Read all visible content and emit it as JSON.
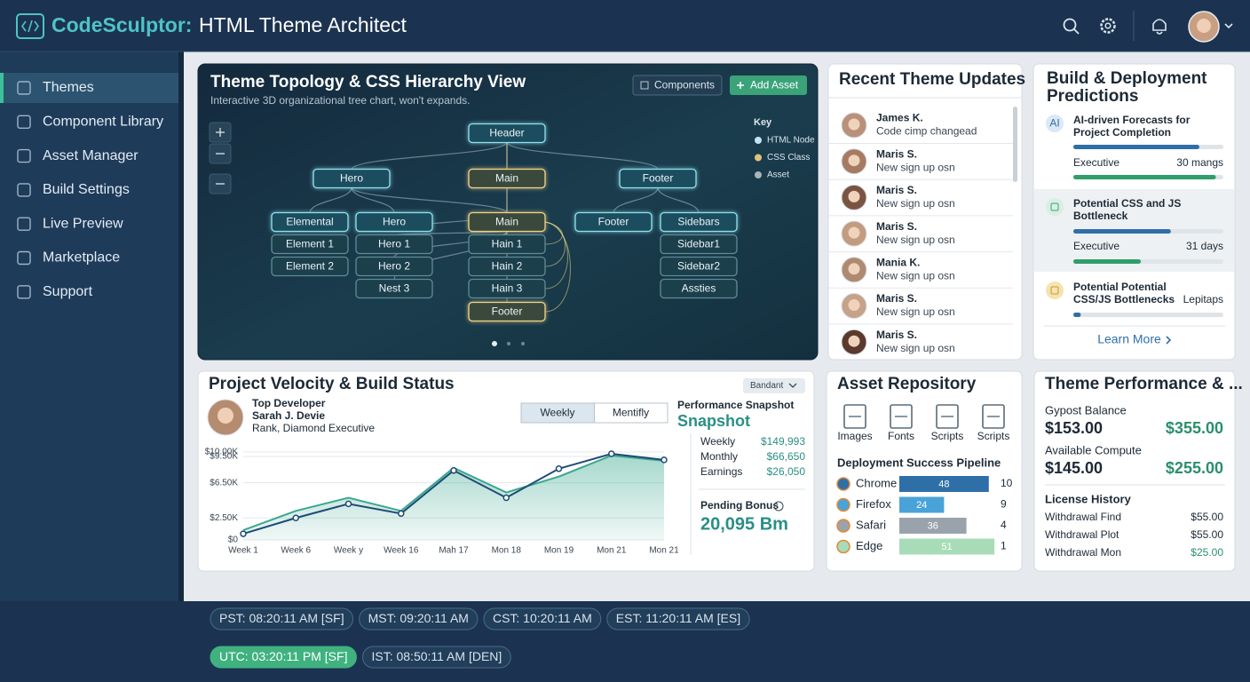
{
  "app": {
    "brand": "CodeSculptor:",
    "title": "HTML Theme Architect"
  },
  "nav": {
    "items": [
      "Themes",
      "Component Library",
      "Asset Manager",
      "Build Settings",
      "Live Preview",
      "Marketplace",
      "Support"
    ],
    "active": 0
  },
  "topology": {
    "title": "Theme Topology & CSS Hierarchy View",
    "subtitle": "Interactive 3D organizational tree chart, won't expands.",
    "buttons": [
      "Components",
      "Add Asset"
    ],
    "key": {
      "title": "Key",
      "items": [
        {
          "label": "HTML Node",
          "color": "#bfe6f5"
        },
        {
          "label": "CSS Class",
          "color": "#e2c27a"
        },
        {
          "label": "Asset",
          "color": "#a9b3bb"
        }
      ]
    },
    "nodes": [
      {
        "label": "Header"
      },
      {
        "label": "Hero"
      },
      {
        "label": "Main"
      },
      {
        "label": "Footer"
      },
      {
        "label": "Elemental"
      },
      {
        "label": "Hero"
      },
      {
        "label": "Main"
      },
      {
        "label": "Footer"
      },
      {
        "label": "Sidebars"
      },
      {
        "label": "Element 1"
      },
      {
        "label": "Element 2"
      },
      {
        "label": "Hero 1"
      },
      {
        "label": "Hero 2"
      },
      {
        "label": "Nest 3"
      },
      {
        "label": "Hain 1"
      },
      {
        "label": "Hain 2"
      },
      {
        "label": "Hain 3"
      },
      {
        "label": "Footer"
      },
      {
        "label": "Sidebar1"
      },
      {
        "label": "Sidebar2"
      },
      {
        "label": "Assties"
      }
    ]
  },
  "recent": {
    "title": "Recent Theme Updates",
    "items": [
      {
        "name": "James K.",
        "text": "Code cimp changead"
      },
      {
        "name": "Maris S.",
        "text": "New sign up osn"
      },
      {
        "name": "Maris S.",
        "text": "New sign up osn"
      },
      {
        "name": "Maris S.",
        "text": "New sign up osn"
      },
      {
        "name": "Mania K.",
        "text": "New sign up osn"
      },
      {
        "name": "Maris S.",
        "text": "New sign up osn"
      },
      {
        "name": "Maris S.",
        "text": "New sign up osn"
      }
    ]
  },
  "predictions": {
    "title": "Build & Deployment Predictions",
    "items": [
      {
        "icon": "AI",
        "title": "AI-driven Forecasts for Project Completion",
        "label": "Executive",
        "value": "30 mangs",
        "bars": [
          0.84,
          0.95
        ]
      },
      {
        "title": "Potential CSS and JS Bottleneck",
        "label": "Executive",
        "value": "31 days",
        "bars": [
          0.65,
          0.45
        ]
      },
      {
        "title": "Potential Potential CSS/JS Bottlenecks",
        "value": "Lepitaps",
        "bars": [
          0.05
        ]
      }
    ],
    "link": "Learn More"
  },
  "velocity": {
    "title": "Project Velocity & Build Status",
    "dropdown": "Bandant",
    "developer": {
      "role": "Top Developer",
      "name": "Sarah J. Devie",
      "rank": "Rank, Diamond Executive"
    },
    "tabs": [
      "Weekly",
      "Mentifly"
    ],
    "active_tab": 0,
    "chart": {
      "type": "line",
      "categories": [
        "Week 1",
        "Week 6",
        "Week y",
        "Week 16",
        "Mah 17",
        "Mon 18",
        "Mon 19",
        "Mon 21",
        "Mon 21"
      ],
      "ylim": [
        0,
        10000
      ],
      "yticks": [
        {
          "value": 0,
          "label": "$0"
        },
        {
          "value": 2500,
          "label": "$2.50K"
        },
        {
          "value": 6500,
          "label": "$6.50K"
        },
        {
          "value": 9500,
          "label": "$9.50K"
        },
        {
          "value": 10000,
          "label": "$10.00K"
        }
      ],
      "series": [
        {
          "color": "#3aa88e",
          "area": true,
          "values": [
            1100,
            3300,
            4800,
            3300,
            8200,
            5400,
            7200,
            9600,
            9000
          ]
        },
        {
          "color": "#1f4a78",
          "values": [
            700,
            2500,
            4100,
            3000,
            7900,
            4800,
            8100,
            9800,
            9100
          ]
        }
      ]
    },
    "snapshot": {
      "title": "Performance Snapshot",
      "subtitle": "Snapshot",
      "rows": [
        {
          "label": "Weekly",
          "value": "$149,993"
        },
        {
          "label": "Monthly",
          "value": "$66,650"
        },
        {
          "label": "Earnings",
          "value": "$26,050"
        }
      ],
      "bonus_label": "Pending Bonus",
      "bonus": "20,095 Bm"
    }
  },
  "assets": {
    "title": "Asset Repository",
    "items": [
      "Images",
      "Fonts",
      "Scripts",
      "Scripts"
    ],
    "pipeline": {
      "title": "Deployment Success Pipeline",
      "rows": [
        {
          "name": "Chrome",
          "value": 48,
          "count": 10,
          "color": "#2f6fa8"
        },
        {
          "name": "Firefox",
          "value": 24,
          "count": 9,
          "color": "#4aa3d8"
        },
        {
          "name": "Safari",
          "value": 36,
          "count": 4,
          "color": "#9aa3ab"
        },
        {
          "name": "Edge",
          "value": 51,
          "count": 1,
          "color": "#a8dcb8"
        }
      ]
    }
  },
  "performance": {
    "title": "Theme Performance & ...",
    "balances": [
      {
        "label": "Gypost Balance",
        "value": "$153.00",
        "alt": "$355.00"
      },
      {
        "label": "Available Compute",
        "value": "$145.00",
        "alt": "$255.00"
      }
    ],
    "history": {
      "title": "License History",
      "rows": [
        {
          "label": "Withdrawal Find",
          "amount": "$55.00"
        },
        {
          "label": "Withdrawal Plot",
          "amount": "$55.00"
        },
        {
          "label": "Withdrawal Mon",
          "amount": "$25.00",
          "color": "#2a8f6a"
        }
      ]
    }
  },
  "clocks": {
    "items": [
      "PST: 08:20:11 AM [SF]",
      "MST: 09:20:11 AM",
      "CST: 10:20:11 AM",
      "EST: 11:20:11 AM [ES]",
      "UTC: 03:20:11 PM [SF]",
      "IST: 08:50:11 AM [DEN]"
    ],
    "active": 4
  }
}
